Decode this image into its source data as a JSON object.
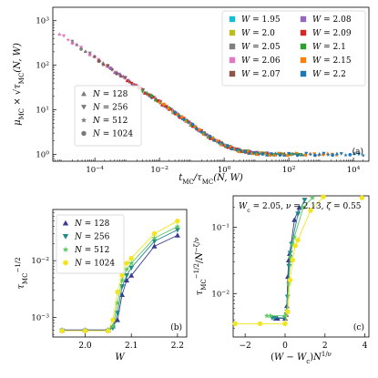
{
  "chart_data": [
    {
      "id": "a",
      "type": "scatter",
      "panel_label": "(a)",
      "xlabel": "t_MC/τ_MC(N,W)",
      "ylabel": "μ_MC × √(τ_MC(N,W))",
      "xscale": "log",
      "yscale": "log",
      "xlim": [
        5e-06,
        30000
      ],
      "ylim": [
        0.7,
        2000
      ],
      "x_tick_labels": [
        "10^-4",
        "10^-2",
        "10^0",
        "10^2",
        "10^4"
      ],
      "x_ticks": [
        0.0001,
        0.01,
        1,
        100,
        10000
      ],
      "y_tick_labels": [
        "10^0",
        "10^1",
        "10^2",
        "10^3"
      ],
      "y_ticks": [
        1,
        10,
        100,
        1000
      ],
      "color_legend": [
        {
          "label": "W = 1.95",
          "color": "#17becf"
        },
        {
          "label": "W = 2.0",
          "color": "#bcbd22"
        },
        {
          "label": "W = 2.05",
          "color": "#7f7f7f"
        },
        {
          "label": "W = 2.06",
          "color": "#e377c2"
        },
        {
          "label": "W = 2.07",
          "color": "#8c564b"
        },
        {
          "label": "W = 2.08",
          "color": "#9467bd"
        },
        {
          "label": "W = 2.09",
          "color": "#d62728"
        },
        {
          "label": "W = 2.1",
          "color": "#2ca02c"
        },
        {
          "label": "W = 2.15",
          "color": "#ff7f0e"
        },
        {
          "label": "W = 2.2",
          "color": "#1f77b4"
        }
      ],
      "marker_legend": [
        {
          "label": "N = 128",
          "marker": "triangle-up"
        },
        {
          "label": "N = 256",
          "marker": "triangle-down"
        },
        {
          "label": "N = 512",
          "marker": "star"
        },
        {
          "label": "N = 1024",
          "marker": "circle"
        }
      ],
      "master_curve": {
        "x": [
          8e-06,
          2e-05,
          5e-05,
          0.0001,
          0.0003,
          0.001,
          0.003,
          0.01,
          0.03,
          0.1,
          0.3,
          1,
          3,
          10,
          30,
          100,
          1000,
          10000,
          20000
        ],
        "y": [
          500,
          330,
          210,
          150,
          85,
          47,
          27,
          15,
          8.5,
          4.6,
          2.6,
          1.6,
          1.2,
          1.05,
          1.0,
          1.0,
          1.0,
          1.0,
          1.0
        ]
      },
      "series_extents": [
        {
          "color": "#e377c2",
          "x": [
            8e-06,
            0.3
          ]
        },
        {
          "color": "#7f7f7f",
          "x": [
            2e-05,
            3
          ]
        },
        {
          "color": "#8c564b",
          "x": [
            0.0001,
            10
          ]
        },
        {
          "color": "#9467bd",
          "x": [
            0.0003,
            30
          ]
        },
        {
          "color": "#d62728",
          "x": [
            0.001,
            100
          ]
        },
        {
          "color": "#2ca02c",
          "x": [
            0.003,
            300
          ]
        },
        {
          "color": "#ff7f0e",
          "x": [
            0.01,
            3000
          ]
        },
        {
          "color": "#1f77b4",
          "x": [
            0.03,
            20000
          ]
        }
      ]
    },
    {
      "id": "b",
      "type": "line",
      "panel_label": "(b)",
      "xlabel": "W",
      "ylabel": "τ_MC^{-1/2}",
      "yscale": "log",
      "xlim": [
        1.93,
        2.22
      ],
      "ylim": [
        0.00045,
        0.08
      ],
      "x_ticks": [
        2.0,
        2.1,
        2.2
      ],
      "x_tick_labels": [
        "2.0",
        "2.1",
        "2.2"
      ],
      "y_ticks": [
        0.001,
        0.01
      ],
      "y_tick_labels": [
        "10^-3",
        "10^-2"
      ],
      "legend": [
        {
          "label": "N = 128",
          "marker": "triangle-up",
          "color": "#3b3b8f"
        },
        {
          "label": "N = 256",
          "marker": "triangle-down",
          "color": "#22898a"
        },
        {
          "label": "N = 512",
          "marker": "star",
          "color": "#5dc863"
        },
        {
          "label": "N = 1024",
          "marker": "circle",
          "color": "#f2e51d"
        }
      ],
      "series": [
        {
          "name": "N = 128",
          "color": "#3b3b8f",
          "marker": "triangle-up",
          "x": [
            1.95,
            2.0,
            2.05,
            2.06,
            2.07,
            2.08,
            2.09,
            2.1,
            2.15,
            2.2
          ],
          "y": [
            0.0006,
            0.0006,
            0.0006,
            0.0007,
            0.0009,
            0.0025,
            0.0045,
            0.0055,
            0.018,
            0.028
          ]
        },
        {
          "name": "N = 256",
          "color": "#22898a",
          "marker": "triangle-down",
          "x": [
            1.95,
            2.0,
            2.05,
            2.06,
            2.07,
            2.08,
            2.09,
            2.1,
            2.15,
            2.2
          ],
          "y": [
            0.00058,
            0.00058,
            0.00058,
            0.00065,
            0.0012,
            0.0035,
            0.0055,
            0.0075,
            0.022,
            0.035
          ]
        },
        {
          "name": "N = 512",
          "color": "#5dc863",
          "marker": "star",
          "x": [
            1.95,
            2.0,
            2.05,
            2.06,
            2.07,
            2.08,
            2.09,
            2.1,
            2.15,
            2.2
          ],
          "y": [
            0.00058,
            0.00058,
            0.00058,
            0.0007,
            0.0018,
            0.0045,
            0.007,
            0.009,
            0.025,
            0.04
          ]
        },
        {
          "name": "N = 1024",
          "color": "#f2e51d",
          "marker": "circle",
          "x": [
            1.95,
            2.0,
            2.05,
            2.06,
            2.07,
            2.08,
            2.09,
            2.1,
            2.15,
            2.2
          ],
          "y": [
            0.00058,
            0.00058,
            0.00058,
            0.0009,
            0.0028,
            0.0055,
            0.009,
            0.011,
            0.03,
            0.05
          ]
        }
      ]
    },
    {
      "id": "c",
      "type": "line",
      "panel_label": "(c)",
      "xlabel": "(W − W_c)N^{1/ν}",
      "ylabel": "τ_MC^{-1/2}/N^{-ζ/ν}",
      "yscale": "log",
      "annotation": "W_c = 2.05,  ν = 2.13,  ζ = 0.55",
      "xlim": [
        -2.6,
        4.2
      ],
      "ylim": [
        0.0022,
        0.3
      ],
      "x_ticks": [
        -2,
        0,
        2,
        4
      ],
      "x_tick_labels": [
        "−2",
        "0",
        "2",
        "4"
      ],
      "y_ticks": [
        0.01,
        0.1
      ],
      "y_tick_labels": [
        "10^-2",
        "10^-1"
      ],
      "series": [
        {
          "name": "N = 128",
          "color": "#3b3b8f",
          "marker": "triangle-up",
          "x": [
            -0.47,
            -0.38,
            0.0,
            0.05,
            0.09,
            0.14,
            0.18,
            0.23,
            0.47,
            0.71
          ],
          "y": [
            0.0042,
            0.0042,
            0.0042,
            0.0048,
            0.0065,
            0.018,
            0.032,
            0.04,
            0.13,
            0.2
          ]
        },
        {
          "name": "N = 256",
          "color": "#22898a",
          "marker": "triangle-down",
          "x": [
            -0.65,
            -0.52,
            0.0,
            0.07,
            0.13,
            0.2,
            0.26,
            0.33,
            0.65,
            0.98
          ],
          "y": [
            0.0043,
            0.0043,
            0.0043,
            0.0048,
            0.0089,
            0.026,
            0.041,
            0.056,
            0.16,
            0.26
          ]
        },
        {
          "name": "N = 512",
          "color": "#5dc863",
          "marker": "star",
          "x": [
            -0.91,
            -0.73,
            0.0,
            0.09,
            0.18,
            0.27,
            0.37,
            0.46,
            0.91,
            1.37
          ],
          "y": [
            0.0046,
            0.0046,
            0.0046,
            0.0055,
            0.014,
            0.036,
            0.055,
            0.071,
            0.2,
            0.28
          ]
        },
        {
          "name": "N = 1024",
          "color": "#f2e51d",
          "marker": "circle",
          "x": [
            -2.5,
            -1.25,
            0.0,
            0.13,
            0.25,
            0.38,
            0.51,
            0.64,
            1.28,
            1.92
          ],
          "y": [
            0.0035,
            0.0035,
            0.0035,
            0.0053,
            0.016,
            0.032,
            0.053,
            0.064,
            0.18,
            0.29
          ]
        }
      ],
      "extra_points": {
        "color": "#f2e51d",
        "marker": "circle",
        "x": [
          3.85
        ],
        "y": [
          0.28
        ]
      }
    }
  ]
}
